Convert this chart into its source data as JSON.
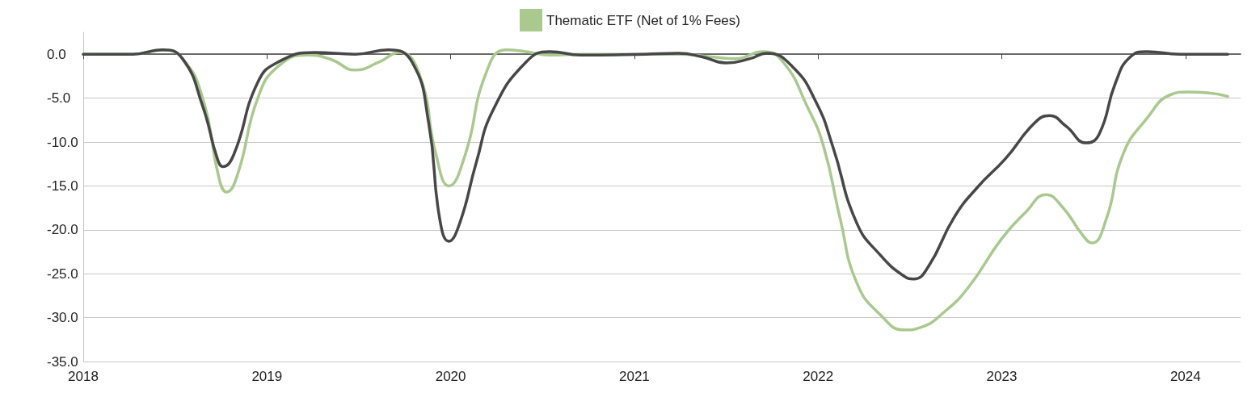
{
  "chart_data": {
    "type": "line",
    "xlim": [
      2018,
      2024.3
    ],
    "xticks": [
      2018,
      2019,
      2020,
      2021,
      2022,
      2023,
      2024
    ],
    "ylim": [
      -35,
      2.5
    ],
    "yticks": [
      {
        "value": 0,
        "label": "0.0"
      },
      {
        "value": -5,
        "label": "-5.0"
      },
      {
        "value": -10,
        "label": "-10.0"
      },
      {
        "value": -15,
        "label": "-15.0"
      },
      {
        "value": -20,
        "label": "-20.0"
      },
      {
        "value": -25,
        "label": "-25.0"
      },
      {
        "value": -30,
        "label": "-30.0"
      },
      {
        "value": -35,
        "label": "-35.0"
      }
    ],
    "grid": "y",
    "legend": "top",
    "marker": "none",
    "line_style": "solid",
    "series": [
      {
        "name": "Thematic ETF (Net of 1% Fees)",
        "color": "#a9c98f",
        "x": [
          2018.0,
          2018.27,
          2018.43,
          2018.54,
          2018.65,
          2018.74,
          2018.78,
          2018.84,
          2018.95,
          2019.06,
          2019.22,
          2019.35,
          2019.48,
          2019.61,
          2019.72,
          2019.83,
          2019.92,
          2019.99,
          2020.08,
          2020.19,
          2020.3,
          2020.41,
          2020.54,
          2020.71,
          2020.93,
          2021.24,
          2021.42,
          2021.55,
          2021.7,
          2021.81,
          2021.94,
          2022.03,
          2022.12,
          2022.21,
          2022.34,
          2022.47,
          2022.56,
          2022.69,
          2022.82,
          2023.0,
          2023.13,
          2023.24,
          2023.33,
          2023.44,
          2023.49,
          2023.57,
          2023.66,
          2023.79,
          2023.92,
          2024.01,
          2024.12,
          2024.23
        ],
        "values": [
          0,
          0,
          0.5,
          -0.5,
          -5,
          -14.2,
          -15.7,
          -13.7,
          -5,
          -1.4,
          -0.1,
          -0.6,
          -1.8,
          -0.9,
          0.2,
          -2.3,
          -11.4,
          -15,
          -11.4,
          -2.3,
          0.5,
          0.3,
          -0.1,
          0,
          0,
          0,
          -0.3,
          -0.5,
          0.3,
          -0.9,
          -5.9,
          -10.5,
          -18.7,
          -26,
          -29.7,
          -31.4,
          -31.1,
          -29.3,
          -26.5,
          -21,
          -18,
          -16,
          -17.4,
          -20.6,
          -21.5,
          -18.7,
          -11.4,
          -7.3,
          -4.6,
          -4.3,
          -4.4,
          -4.8
        ]
      },
      {
        "color": "#474747",
        "x": [
          2018.0,
          2018.27,
          2018.43,
          2018.54,
          2018.65,
          2018.73,
          2018.76,
          2018.82,
          2018.95,
          2019.06,
          2019.26,
          2019.48,
          2019.66,
          2019.79,
          2019.88,
          2019.94,
          2019.99,
          2020.05,
          2020.14,
          2020.23,
          2020.41,
          2020.54,
          2020.71,
          2021.06,
          2021.24,
          2021.37,
          2021.5,
          2021.63,
          2021.72,
          2021.86,
          2021.99,
          2022.08,
          2022.21,
          2022.34,
          2022.47,
          2022.52,
          2022.6,
          2022.74,
          2022.87,
          2023.02,
          2023.18,
          2023.26,
          2023.35,
          2023.46,
          2023.53,
          2023.62,
          2023.7,
          2023.79,
          2023.97,
          2024.23
        ],
        "values": [
          0,
          0,
          0.5,
          -0.5,
          -5.9,
          -11.9,
          -12.8,
          -11.4,
          -3.2,
          -0.9,
          0.2,
          0,
          0.5,
          -0.9,
          -7.8,
          -18.7,
          -21.3,
          -19.2,
          -12.3,
          -6.4,
          -0.9,
          0.3,
          -0.1,
          0,
          0.1,
          -0.3,
          -1,
          -0.5,
          0.1,
          -1.4,
          -5.5,
          -10.5,
          -19.2,
          -22.9,
          -25.3,
          -25.6,
          -24.2,
          -18.6,
          -15.1,
          -11.9,
          -7.8,
          -7,
          -8.2,
          -10.1,
          -9.1,
          -3.2,
          -0.3,
          0.3,
          0,
          0
        ]
      }
    ]
  }
}
